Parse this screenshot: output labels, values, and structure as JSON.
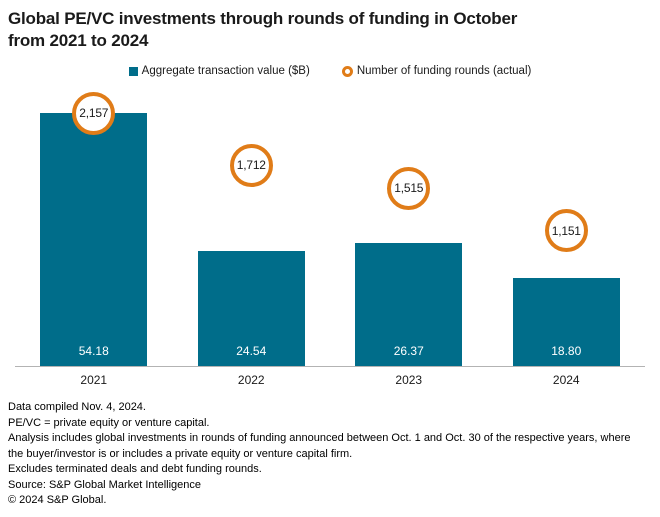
{
  "title": "Global PE/VC investments through rounds of funding in October\nfrom 2021 to 2024",
  "legend": [
    {
      "label": "Aggregate transaction value ($B)",
      "marker": "square-icon",
      "color": "#006D8A"
    },
    {
      "label": "Number of funding rounds (actual)",
      "marker": "ring-icon",
      "color": "#E07C18"
    }
  ],
  "chart_data": {
    "type": "bar",
    "title": "Global PE/VC investments through rounds of funding in October from 2021 to 2024",
    "categories": [
      "2021",
      "2022",
      "2023",
      "2024"
    ],
    "series": [
      {
        "name": "Aggregate transaction value ($B)",
        "type": "bar",
        "color": "#006D8A",
        "values": [
          54.18,
          24.54,
          26.37,
          18.8
        ],
        "labels": [
          "54.18",
          "24.54",
          "26.37",
          "18.80"
        ],
        "label_position": "inside-bottom",
        "label_color": "#FFFFFF"
      },
      {
        "name": "Number of funding rounds (actual)",
        "type": "circle-marker",
        "color": "#E07C18",
        "values": [
          2157,
          1712,
          1515,
          1151
        ],
        "labels": [
          "2,157",
          "1,712",
          "1,515",
          "1,151"
        ]
      }
    ],
    "legend_position": "top-center",
    "grid": false,
    "value_axis_visible": false,
    "baseline_color": "#B3B3B3"
  },
  "footnotes": [
    "Data compiled Nov. 4, 2024.",
    "PE/VC = private equity or venture capital.",
    "Analysis includes global investments in rounds of funding announced between Oct. 1 and Oct. 30 of the respective years, where\nthe buyer/investor is or includes a private equity or venture capital firm.",
    "Excludes terminated deals and debt funding rounds.",
    "Source: S&P Global Market Intelligence",
    "© 2024 S&P Global."
  ],
  "colors": {
    "bar": "#006D8A",
    "ring": "#E07C18",
    "axis_line": "#B3B3B3",
    "text": "#1A1A1A",
    "bar_value_text": "#FFFFFF",
    "background": "#FFFFFF"
  }
}
